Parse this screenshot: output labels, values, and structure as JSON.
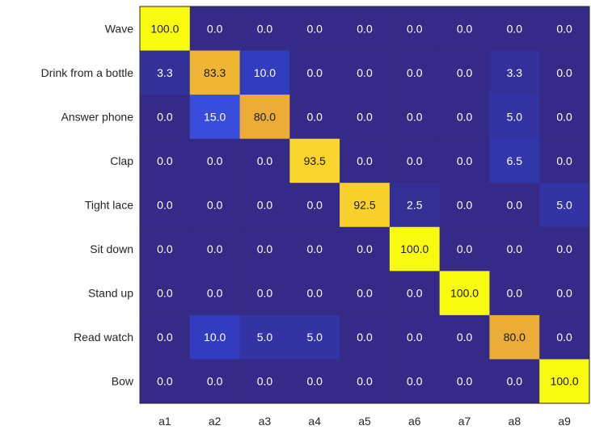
{
  "chart_data": {
    "type": "heatmap",
    "title": "",
    "xlabel": "",
    "ylabel": "",
    "rows": [
      "Wave",
      "Drink from a bottle",
      "Answer phone",
      "Clap",
      "Tight lace",
      "Sit down",
      "Stand up",
      "Read watch",
      "Bow"
    ],
    "columns": [
      "a1",
      "a2",
      "a3",
      "a4",
      "a5",
      "a6",
      "a7",
      "a8",
      "a9"
    ],
    "values": [
      [
        100.0,
        0.0,
        0.0,
        0.0,
        0.0,
        0.0,
        0.0,
        0.0,
        0.0
      ],
      [
        3.3,
        83.3,
        10.0,
        0.0,
        0.0,
        0.0,
        0.0,
        3.3,
        0.0
      ],
      [
        0.0,
        15.0,
        80.0,
        0.0,
        0.0,
        0.0,
        0.0,
        5.0,
        0.0
      ],
      [
        0.0,
        0.0,
        0.0,
        93.5,
        0.0,
        0.0,
        0.0,
        6.5,
        0.0
      ],
      [
        0.0,
        0.0,
        0.0,
        0.0,
        92.5,
        2.5,
        0.0,
        0.0,
        5.0
      ],
      [
        0.0,
        0.0,
        0.0,
        0.0,
        0.0,
        100.0,
        0.0,
        0.0,
        0.0
      ],
      [
        0.0,
        0.0,
        0.0,
        0.0,
        0.0,
        0.0,
        100.0,
        0.0,
        0.0
      ],
      [
        0.0,
        10.0,
        5.0,
        5.0,
        0.0,
        0.0,
        0.0,
        80.0,
        0.0
      ],
      [
        0.0,
        0.0,
        0.0,
        0.0,
        0.0,
        0.0,
        0.0,
        0.0,
        100.0
      ]
    ],
    "value_format": "one-decimal",
    "colormap": "parula",
    "clim": [
      0,
      100
    ],
    "grid": false,
    "legend": "none"
  }
}
